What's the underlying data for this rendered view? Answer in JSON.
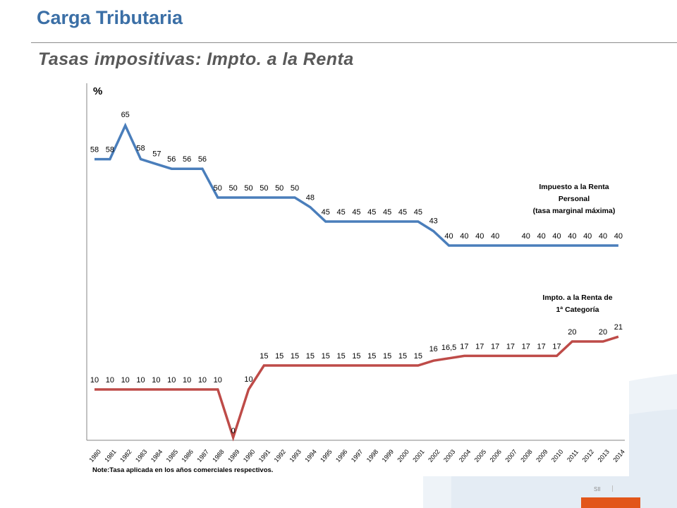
{
  "header": {
    "title": "Carga Tributaria",
    "subtitle": "Tasas impositivas: Impto. a la Renta"
  },
  "footer": {
    "label": "SII",
    "accent_color": "#e2561a"
  },
  "colors": {
    "title": "#3b6fa6",
    "personal_series": "#4a7ebb",
    "category_series": "#be4b48"
  },
  "chart_data": {
    "type": "line",
    "ylabel": "%",
    "x": [
      "1980",
      "1981",
      "1982",
      "1983",
      "1984",
      "1985",
      "1986",
      "1987",
      "1988",
      "1989",
      "1990",
      "1991",
      "1992",
      "1993",
      "1994",
      "1995",
      "1996",
      "1997",
      "1998",
      "1999",
      "2000",
      "2001",
      "2002",
      "2003",
      "2004",
      "2005",
      "2006",
      "2007",
      "2008",
      "2009",
      "2010",
      "2011",
      "2012",
      "2013",
      "2014"
    ],
    "series": [
      {
        "name": "Impuesto a la Renta Personal (tasa marginal máxima)",
        "name_lines": [
          "Impuesto a la Renta",
          "Personal",
          "(tasa marginal máxima)"
        ],
        "color": "#4a7ebb",
        "values": [
          58,
          58,
          65,
          58,
          57,
          56,
          56,
          56,
          50,
          50,
          50,
          50,
          50,
          50,
          48,
          45,
          45,
          45,
          45,
          45,
          45,
          45,
          43,
          40,
          40,
          40,
          40,
          40,
          40,
          40,
          40,
          40,
          40,
          40,
          40
        ],
        "labels": [
          "58",
          "58",
          "65",
          "58",
          "57",
          "56",
          "56",
          "56",
          "50",
          "50",
          "50",
          "50",
          "50",
          "50",
          "48",
          "45",
          "45",
          "45",
          "45",
          "45",
          "45",
          "45",
          "43",
          "40",
          "40",
          "40",
          "40",
          "",
          "40",
          "40",
          "40",
          "40",
          "40",
          "40",
          "40"
        ]
      },
      {
        "name": "Impto. a la Renta de 1ª Categoría",
        "name_lines": [
          "Impto. a la Renta de",
          "1ª Categoría"
        ],
        "color": "#be4b48",
        "values": [
          10,
          10,
          10,
          10,
          10,
          10,
          10,
          10,
          10,
          0,
          10,
          15,
          15,
          15,
          15,
          15,
          15,
          15,
          15,
          15,
          15,
          15,
          16,
          16.5,
          17,
          17,
          17,
          17,
          17,
          17,
          17,
          20,
          20,
          20,
          21
        ],
        "labels": [
          "10",
          "10",
          "10",
          "10",
          "10",
          "10",
          "10",
          "10",
          "10",
          "0",
          "10",
          "15",
          "15",
          "15",
          "15",
          "15",
          "15",
          "15",
          "15",
          "15",
          "15",
          "15",
          "16",
          "16,5",
          "17",
          "17",
          "17",
          "17",
          "17",
          "17",
          "17",
          "20",
          "",
          "20",
          "21"
        ]
      }
    ],
    "note": "Note:Tasa aplicada en los años comerciales respectivos.",
    "ylim": [
      0,
      68
    ],
    "grid": false,
    "legend": "inline labels at right"
  }
}
